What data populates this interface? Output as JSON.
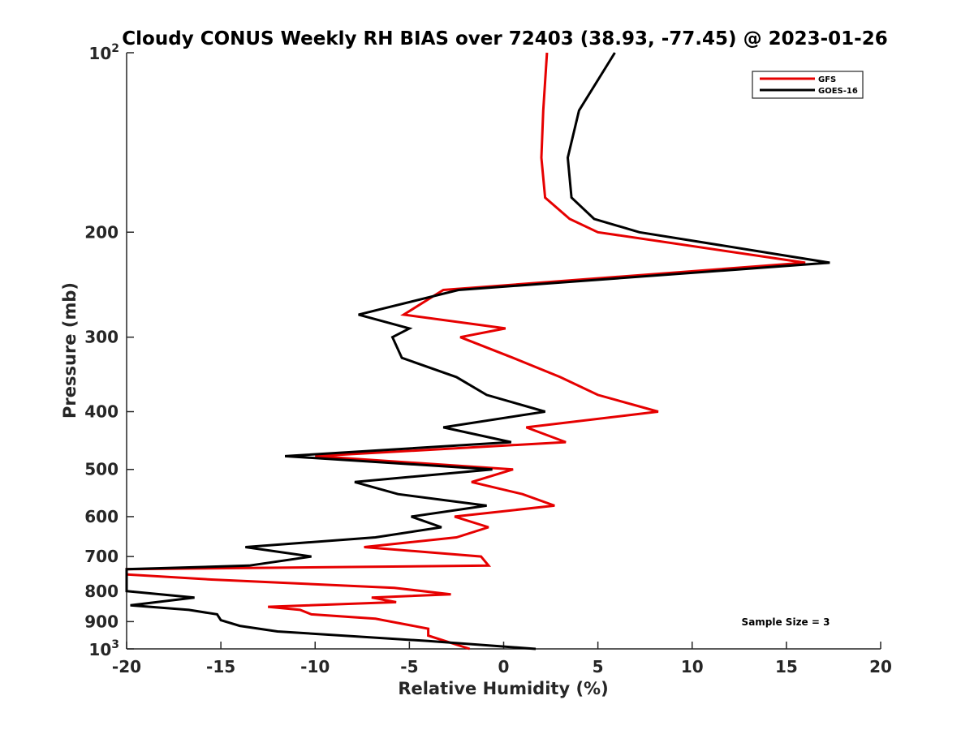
{
  "chart_data": {
    "type": "line",
    "title": "Cloudy CONUS Weekly RH BIAS over 72403 (38.93, -77.45) @ 2023-01-26",
    "xlabel": "Relative Humidity (%)",
    "ylabel": "Pressure (mb)",
    "xlim": [
      -20,
      20
    ],
    "ylim": [
      100,
      1000
    ],
    "y_scale": "log",
    "y_reversed": true,
    "grid": false,
    "legend_position": "top-right",
    "x_ticks": [
      -20,
      -15,
      -10,
      -5,
      0,
      5,
      10,
      15,
      20
    ],
    "x_tick_labels": [
      "-20",
      "-15",
      "-10",
      "-5",
      "0",
      "5",
      "10",
      "15",
      "20"
    ],
    "y_ticks": [
      200,
      300,
      400,
      500,
      600,
      700,
      800,
      900
    ],
    "y_tick_labels": [
      "200",
      "300",
      "400",
      "500",
      "600",
      "700",
      "800",
      "900"
    ],
    "y_decade_labels": [
      {
        "value": 100,
        "base": "10",
        "exp": "2"
      },
      {
        "value": 1000,
        "base": "10",
        "exp": "3"
      }
    ],
    "annotation": "Sample Size = 3",
    "series": [
      {
        "name": "GFS",
        "color": "#e60000",
        "points": [
          [
            2.3,
            100
          ],
          [
            2.1,
            125
          ],
          [
            2.0,
            150
          ],
          [
            2.2,
            175
          ],
          [
            3.5,
            190
          ],
          [
            5.0,
            200
          ],
          [
            16.0,
            225
          ],
          [
            -3.2,
            250
          ],
          [
            -5.3,
            275
          ],
          [
            0.1,
            290
          ],
          [
            -2.3,
            300
          ],
          [
            0.5,
            325
          ],
          [
            3.0,
            350
          ],
          [
            5.0,
            375
          ],
          [
            8.2,
            400
          ],
          [
            1.2,
            425
          ],
          [
            3.3,
            450
          ],
          [
            -10.0,
            475
          ],
          [
            0.5,
            500
          ],
          [
            -1.7,
            525
          ],
          [
            1.0,
            550
          ],
          [
            2.7,
            575
          ],
          [
            -2.6,
            600
          ],
          [
            -0.8,
            625
          ],
          [
            -2.5,
            650
          ],
          [
            -7.4,
            675
          ],
          [
            -1.2,
            700
          ],
          [
            -0.8,
            725
          ],
          [
            -20.0,
            735
          ],
          [
            -20.0,
            750
          ],
          [
            -15.5,
            765
          ],
          [
            -5.8,
            790
          ],
          [
            -2.8,
            810
          ],
          [
            -7.0,
            820
          ],
          [
            -5.7,
            835
          ],
          [
            -12.5,
            850
          ],
          [
            -10.8,
            860
          ],
          [
            -10.2,
            875
          ],
          [
            -6.8,
            890
          ],
          [
            -4.0,
            925
          ],
          [
            -4.0,
            950
          ],
          [
            -1.8,
            1000
          ]
        ]
      },
      {
        "name": "GOES-16",
        "color": "#000000",
        "points": [
          [
            5.9,
            100
          ],
          [
            4.0,
            125
          ],
          [
            3.4,
            150
          ],
          [
            3.6,
            175
          ],
          [
            4.8,
            190
          ],
          [
            7.2,
            200
          ],
          [
            17.3,
            225
          ],
          [
            -2.4,
            250
          ],
          [
            -7.7,
            275
          ],
          [
            -5.0,
            290
          ],
          [
            -5.9,
            300
          ],
          [
            -5.4,
            325
          ],
          [
            -2.5,
            350
          ],
          [
            -0.9,
            375
          ],
          [
            2.2,
            400
          ],
          [
            -3.2,
            425
          ],
          [
            0.4,
            450
          ],
          [
            -11.6,
            475
          ],
          [
            -0.6,
            500
          ],
          [
            -7.9,
            525
          ],
          [
            -5.6,
            550
          ],
          [
            -0.9,
            575
          ],
          [
            -4.9,
            600
          ],
          [
            -3.3,
            625
          ],
          [
            -6.8,
            650
          ],
          [
            -13.7,
            675
          ],
          [
            -10.2,
            700
          ],
          [
            -13.5,
            725
          ],
          [
            -20.0,
            735
          ],
          [
            -20.0,
            800
          ],
          [
            -16.4,
            820
          ],
          [
            -19.8,
            845
          ],
          [
            -16.7,
            860
          ],
          [
            -15.2,
            875
          ],
          [
            -15.0,
            895
          ],
          [
            -14.0,
            915
          ],
          [
            -12.0,
            935
          ],
          [
            -4.0,
            970
          ],
          [
            1.7,
            1000
          ]
        ]
      }
    ]
  }
}
